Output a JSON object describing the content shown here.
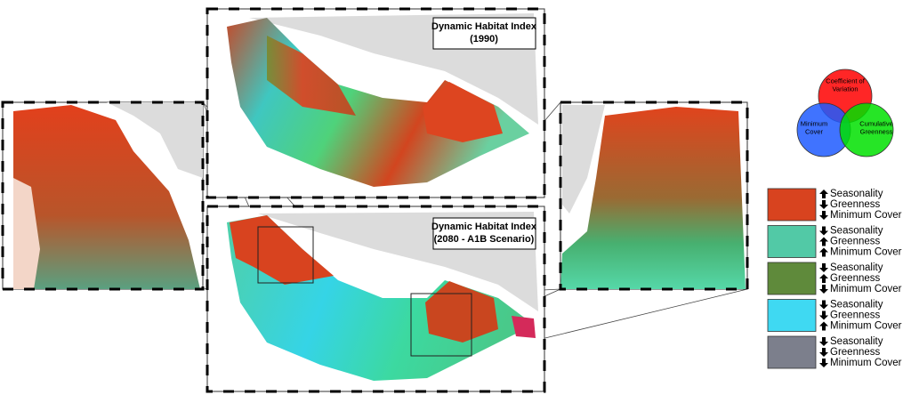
{
  "top_map": {
    "title_lines": [
      "Dynamic Habitat Index",
      "(1990)"
    ]
  },
  "bottom_map": {
    "title_lines": [
      "Dynamic Habitat Index",
      "(2080 - A1B Scenario)"
    ]
  },
  "venn": {
    "circles": [
      {
        "label_lines": [
          "Coefficient of",
          "Variation"
        ],
        "color": "#ff0000"
      },
      {
        "label_lines": [
          "Minimum",
          "Cover"
        ],
        "color": "#1e5bff"
      },
      {
        "label_lines": [
          "Cumulative",
          "Greenness"
        ],
        "color": "#00e000"
      }
    ]
  },
  "legend": [
    {
      "color": "#d8431f",
      "items": [
        {
          "dir": "up",
          "label": "Seasonality"
        },
        {
          "dir": "down",
          "label": "Greenness"
        },
        {
          "dir": "down",
          "label": "Minimum Cover"
        }
      ]
    },
    {
      "color": "#52c9a6",
      "items": [
        {
          "dir": "down",
          "label": "Seasonality"
        },
        {
          "dir": "up",
          "label": "Greenness"
        },
        {
          "dir": "up",
          "label": "Minimum Cover"
        }
      ]
    },
    {
      "color": "#5f8a3b",
      "items": [
        {
          "dir": "down",
          "label": "Seasonality"
        },
        {
          "dir": "up",
          "label": "Greenness"
        },
        {
          "dir": "down",
          "label": "Minimum Cover"
        }
      ]
    },
    {
      "color": "#3fd9f2",
      "items": [
        {
          "dir": "down",
          "label": "Seasonality"
        },
        {
          "dir": "down",
          "label": "Greenness"
        },
        {
          "dir": "up",
          "label": "Minimum Cover"
        }
      ]
    },
    {
      "color": "#7c7f8c",
      "items": [
        {
          "dir": "down",
          "label": "Seasonality"
        },
        {
          "dir": "down",
          "label": "Greenness"
        },
        {
          "dir": "down",
          "label": "Minimum Cover"
        }
      ]
    }
  ]
}
